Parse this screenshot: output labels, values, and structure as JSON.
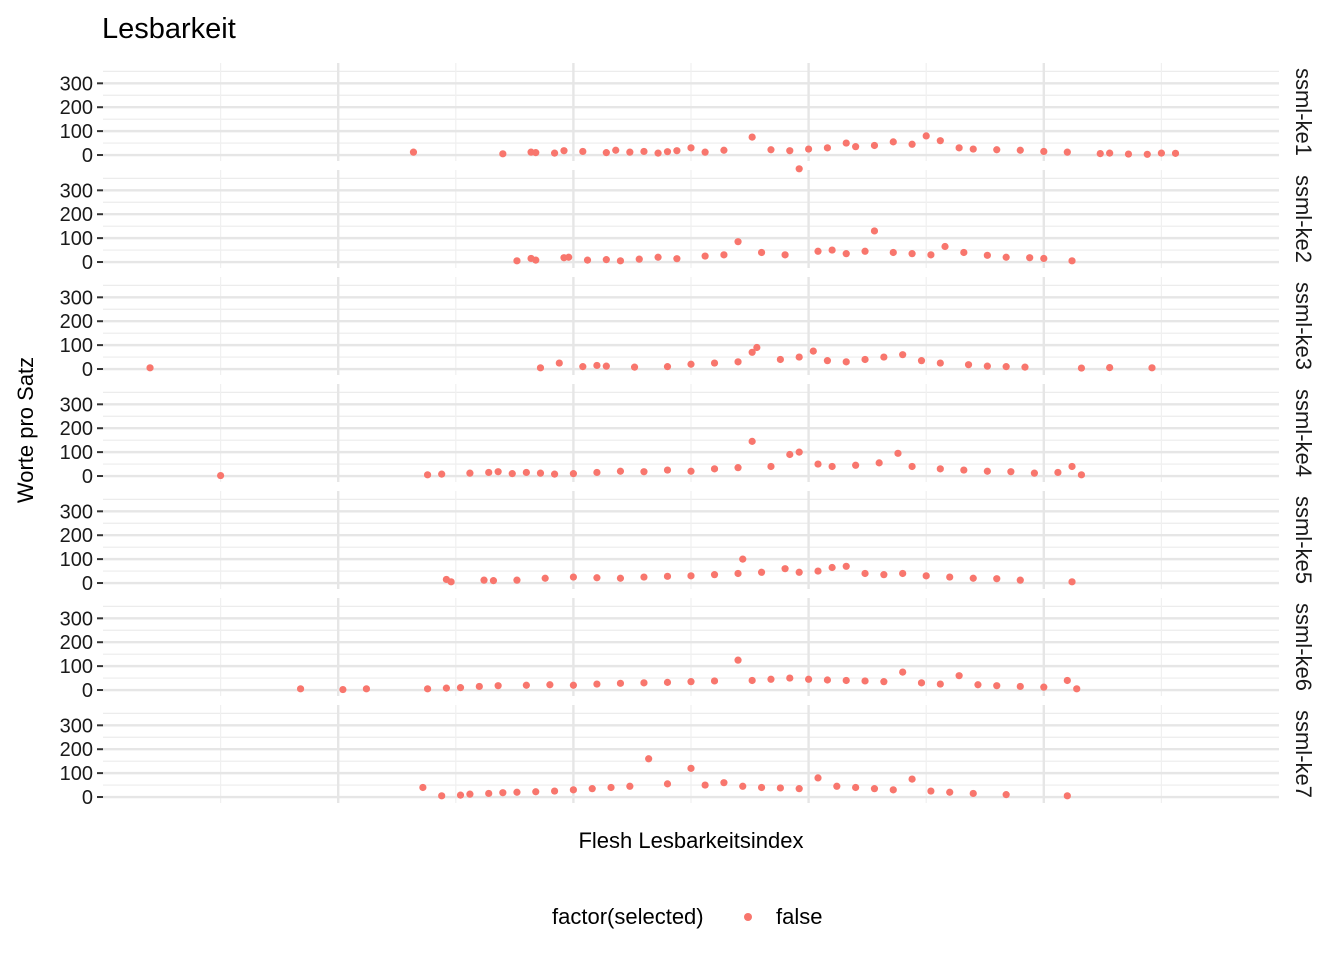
{
  "chart_data": {
    "type": "scatter",
    "title": "Lesbarkeit",
    "xlabel": "Flesh Lesbarkeitsindex",
    "ylabel": "Worte pro Satz",
    "y_ticks": [
      0,
      100,
      200,
      300
    ],
    "y_tick_labels": [
      "0",
      "100",
      "200",
      "300"
    ],
    "ylim": [
      -25,
      385
    ],
    "xlim": [
      -150,
      100
    ],
    "x_gridlines": [
      -125,
      -100,
      -75,
      -50,
      -25,
      0,
      25,
      50,
      75
    ],
    "x_tick_labels_shown": false,
    "legend": {
      "title": "factor(selected)",
      "position": "bottom",
      "entries": [
        {
          "label": "false",
          "color": "#F8766D"
        }
      ]
    },
    "point_color": "#F8766D",
    "panels": [
      {
        "name": "ssml-ke1",
        "points": [
          [
            -84,
            12
          ],
          [
            -65,
            5
          ],
          [
            -59,
            12
          ],
          [
            -58,
            10
          ],
          [
            -54,
            8
          ],
          [
            -52,
            18
          ],
          [
            -48,
            15
          ],
          [
            -43,
            10
          ],
          [
            -41,
            20
          ],
          [
            -38,
            12
          ],
          [
            -35,
            15
          ],
          [
            -32,
            8
          ],
          [
            -30,
            14
          ],
          [
            -28,
            18
          ],
          [
            -25,
            30
          ],
          [
            -22,
            12
          ],
          [
            -18,
            20
          ],
          [
            -12,
            75
          ],
          [
            -8,
            22
          ],
          [
            -4,
            18
          ],
          [
            0,
            25
          ],
          [
            4,
            30
          ],
          [
            8,
            50
          ],
          [
            10,
            35
          ],
          [
            14,
            40
          ],
          [
            18,
            55
          ],
          [
            22,
            45
          ],
          [
            25,
            80
          ],
          [
            28,
            60
          ],
          [
            32,
            30
          ],
          [
            35,
            25
          ],
          [
            40,
            22
          ],
          [
            45,
            20
          ],
          [
            50,
            15
          ],
          [
            55,
            12
          ],
          [
            62,
            6
          ],
          [
            64,
            8
          ],
          [
            68,
            4
          ],
          [
            72,
            3
          ],
          [
            75,
            8
          ],
          [
            78,
            7
          ]
        ]
      },
      {
        "name": "ssml-ke2",
        "points": [
          [
            -62,
            5
          ],
          [
            -59,
            15
          ],
          [
            -58,
            8
          ],
          [
            -52,
            18
          ],
          [
            -51,
            20
          ],
          [
            -47,
            8
          ],
          [
            -43,
            10
          ],
          [
            -40,
            5
          ],
          [
            -36,
            12
          ],
          [
            -32,
            20
          ],
          [
            -28,
            14
          ],
          [
            -22,
            25
          ],
          [
            -18,
            30
          ],
          [
            -15,
            85
          ],
          [
            -10,
            40
          ],
          [
            -5,
            30
          ],
          [
            -2,
            390
          ],
          [
            2,
            45
          ],
          [
            5,
            50
          ],
          [
            8,
            35
          ],
          [
            12,
            45
          ],
          [
            14,
            130
          ],
          [
            18,
            40
          ],
          [
            22,
            35
          ],
          [
            26,
            30
          ],
          [
            29,
            65
          ],
          [
            33,
            40
          ],
          [
            38,
            28
          ],
          [
            42,
            20
          ],
          [
            47,
            18
          ],
          [
            50,
            15
          ],
          [
            56,
            5
          ]
        ]
      },
      {
        "name": "ssml-ke3",
        "points": [
          [
            -140,
            5
          ],
          [
            -57,
            5
          ],
          [
            -53,
            25
          ],
          [
            -48,
            10
          ],
          [
            -45,
            15
          ],
          [
            -43,
            12
          ],
          [
            -37,
            8
          ],
          [
            -30,
            10
          ],
          [
            -25,
            20
          ],
          [
            -20,
            25
          ],
          [
            -15,
            30
          ],
          [
            -12,
            70
          ],
          [
            -11,
            90
          ],
          [
            -6,
            40
          ],
          [
            -2,
            50
          ],
          [
            1,
            75
          ],
          [
            4,
            35
          ],
          [
            8,
            30
          ],
          [
            12,
            40
          ],
          [
            16,
            50
          ],
          [
            20,
            60
          ],
          [
            24,
            35
          ],
          [
            28,
            25
          ],
          [
            34,
            18
          ],
          [
            38,
            12
          ],
          [
            42,
            10
          ],
          [
            46,
            8
          ],
          [
            58,
            4
          ],
          [
            64,
            6
          ],
          [
            73,
            5
          ]
        ]
      },
      {
        "name": "ssml-ke4",
        "points": [
          [
            -125,
            2
          ],
          [
            -81,
            5
          ],
          [
            -78,
            8
          ],
          [
            -72,
            12
          ],
          [
            -68,
            15
          ],
          [
            -66,
            18
          ],
          [
            -63,
            10
          ],
          [
            -60,
            15
          ],
          [
            -57,
            12
          ],
          [
            -54,
            8
          ],
          [
            -50,
            10
          ],
          [
            -45,
            15
          ],
          [
            -40,
            20
          ],
          [
            -35,
            18
          ],
          [
            -30,
            25
          ],
          [
            -25,
            20
          ],
          [
            -20,
            30
          ],
          [
            -15,
            35
          ],
          [
            -12,
            145
          ],
          [
            -8,
            40
          ],
          [
            -4,
            90
          ],
          [
            -2,
            100
          ],
          [
            2,
            50
          ],
          [
            5,
            40
          ],
          [
            10,
            45
          ],
          [
            15,
            55
          ],
          [
            19,
            95
          ],
          [
            22,
            40
          ],
          [
            28,
            30
          ],
          [
            33,
            25
          ],
          [
            38,
            20
          ],
          [
            43,
            18
          ],
          [
            48,
            12
          ],
          [
            53,
            15
          ],
          [
            56,
            40
          ],
          [
            58,
            5
          ]
        ]
      },
      {
        "name": "ssml-ke5",
        "points": [
          [
            -77,
            15
          ],
          [
            -76,
            5
          ],
          [
            -69,
            12
          ],
          [
            -67,
            10
          ],
          [
            -62,
            12
          ],
          [
            -56,
            20
          ],
          [
            -50,
            25
          ],
          [
            -45,
            22
          ],
          [
            -40,
            20
          ],
          [
            -35,
            25
          ],
          [
            -30,
            28
          ],
          [
            -25,
            30
          ],
          [
            -20,
            35
          ],
          [
            -15,
            40
          ],
          [
            -14,
            100
          ],
          [
            -10,
            45
          ],
          [
            -5,
            60
          ],
          [
            -2,
            45
          ],
          [
            2,
            50
          ],
          [
            5,
            65
          ],
          [
            8,
            70
          ],
          [
            12,
            40
          ],
          [
            16,
            35
          ],
          [
            20,
            40
          ],
          [
            25,
            30
          ],
          [
            30,
            25
          ],
          [
            35,
            20
          ],
          [
            40,
            18
          ],
          [
            45,
            12
          ],
          [
            56,
            5
          ]
        ]
      },
      {
        "name": "ssml-ke6",
        "points": [
          [
            -108,
            5
          ],
          [
            -99,
            2
          ],
          [
            -94,
            5
          ],
          [
            -81,
            5
          ],
          [
            -77,
            8
          ],
          [
            -74,
            10
          ],
          [
            -70,
            15
          ],
          [
            -66,
            18
          ],
          [
            -60,
            20
          ],
          [
            -55,
            22
          ],
          [
            -50,
            20
          ],
          [
            -45,
            25
          ],
          [
            -40,
            28
          ],
          [
            -35,
            30
          ],
          [
            -30,
            32
          ],
          [
            -25,
            35
          ],
          [
            -20,
            38
          ],
          [
            -15,
            125
          ],
          [
            -12,
            40
          ],
          [
            -8,
            45
          ],
          [
            -4,
            50
          ],
          [
            0,
            45
          ],
          [
            4,
            42
          ],
          [
            8,
            40
          ],
          [
            12,
            38
          ],
          [
            16,
            35
          ],
          [
            20,
            75
          ],
          [
            24,
            30
          ],
          [
            28,
            25
          ],
          [
            32,
            60
          ],
          [
            36,
            22
          ],
          [
            40,
            18
          ],
          [
            45,
            15
          ],
          [
            50,
            12
          ],
          [
            55,
            40
          ],
          [
            57,
            5
          ]
        ]
      },
      {
        "name": "ssml-ke7",
        "points": [
          [
            -82,
            40
          ],
          [
            -78,
            5
          ],
          [
            -74,
            8
          ],
          [
            -72,
            12
          ],
          [
            -68,
            15
          ],
          [
            -65,
            18
          ],
          [
            -62,
            20
          ],
          [
            -58,
            22
          ],
          [
            -54,
            25
          ],
          [
            -50,
            30
          ],
          [
            -46,
            35
          ],
          [
            -42,
            40
          ],
          [
            -38,
            45
          ],
          [
            -34,
            160
          ],
          [
            -30,
            55
          ],
          [
            -25,
            120
          ],
          [
            -22,
            50
          ],
          [
            -18,
            60
          ],
          [
            -14,
            45
          ],
          [
            -10,
            40
          ],
          [
            -6,
            38
          ],
          [
            -2,
            35
          ],
          [
            2,
            80
          ],
          [
            6,
            45
          ],
          [
            10,
            40
          ],
          [
            14,
            35
          ],
          [
            18,
            30
          ],
          [
            22,
            75
          ],
          [
            26,
            25
          ],
          [
            30,
            20
          ],
          [
            35,
            15
          ],
          [
            42,
            10
          ],
          [
            55,
            5
          ]
        ]
      }
    ]
  }
}
